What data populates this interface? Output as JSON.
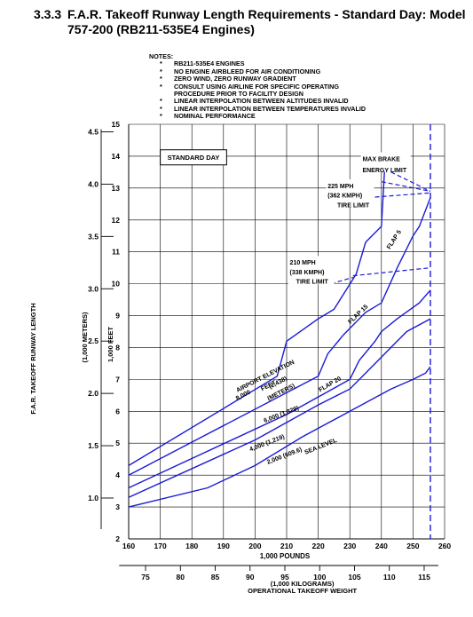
{
  "title": {
    "number": "3.3.3",
    "line1": "F.A.R. Takeoff Runway Length Requirements - Standard Day: Model",
    "line2": "757-200 (RB211-535E4 Engines)"
  },
  "notes": {
    "heading": "NOTES:",
    "items": [
      "RB211-535E4 ENGINES",
      "NO ENGINE AIRBLEED FOR AIR CONDITIONING",
      "ZERO WIND, ZERO RUNWAY GRADIENT",
      "CONSULT USING AIRLINE FOR SPECIFIC OPERATING PROCEDURE PRIOR TO FACILITY DESIGN",
      "LINEAR INTERPOLATION BETWEEN ALTITUDES INVALID",
      "LINEAR INTERPOLATION BETWEEN TEMPERATURES INVALID",
      "NOMINAL PERFORMANCE"
    ]
  },
  "chart_data": {
    "type": "line",
    "box_label": "STANDARD DAY",
    "xlabel": "1,000 POUNDS",
    "xlabel2": "(1,000 KILOGRAMS)",
    "xlabel_bottom": "OPERATIONAL TAKEOFF WEIGHT",
    "ylabel": "1,000 FEET",
    "ylabel_m": "(1,000 METERS)",
    "ylabel_outer": "F.A.R. TAKEOFF RUNWAY LENGTH",
    "xlim": [
      160,
      260
    ],
    "ylim": [
      2,
      15
    ],
    "x_ticks": [
      "160",
      "170",
      "180",
      "190",
      "200",
      "210",
      "220",
      "230",
      "240",
      "250",
      "260"
    ],
    "y_ticks": [
      "2",
      "3",
      "4",
      "5",
      "6",
      "7",
      "8",
      "9",
      "10",
      "11",
      "12",
      "13",
      "14",
      "15"
    ],
    "m_ticks": [
      "1.0",
      "1.5",
      "2.0",
      "2.5",
      "3.0",
      "3.5",
      "4.0",
      "4.5"
    ],
    "kg_ticks": [
      "75",
      "80",
      "85",
      "90",
      "95",
      "100",
      "105",
      "110",
      "115"
    ],
    "max_weight_lb": 255.5,
    "elevation_label_1": "AIRPORT ELEVATION",
    "elevation_label_2": "FEET",
    "elevation_label_3": "(METERS)",
    "series": [
      {
        "name": "8,000",
        "sub": "(2,438)",
        "x": [
          160,
          207,
          210,
          220,
          225,
          232,
          235,
          240,
          241
        ],
        "y": [
          4.3,
          7.1,
          8.2,
          8.9,
          9.2,
          10.3,
          11.3,
          11.8,
          13.6
        ]
      },
      {
        "name": "6,000",
        "sub": "(1,829)",
        "x": [
          160,
          220,
          223,
          228,
          230,
          235,
          240,
          245,
          250,
          252,
          255.5
        ],
        "y": [
          4.0,
          7.1,
          7.8,
          8.4,
          8.6,
          9.1,
          9.4,
          10.5,
          11.5,
          11.8,
          12.7
        ]
      },
      {
        "name": "4,000",
        "sub": "(1,219)",
        "x": [
          160,
          210,
          230,
          233,
          238,
          240,
          245,
          252,
          255.5
        ],
        "y": [
          3.6,
          5.9,
          7.0,
          7.6,
          8.2,
          8.5,
          8.9,
          9.4,
          9.8
        ]
      },
      {
        "name": "2,000",
        "sub": "(609.6)",
        "x": [
          160,
          200,
          220,
          230,
          236,
          240,
          245,
          248,
          255.5
        ],
        "y": [
          3.3,
          5.1,
          6.2,
          6.7,
          7.3,
          7.7,
          8.2,
          8.5,
          8.9
        ]
      },
      {
        "name": "SEA LEVEL",
        "sub": "",
        "x": [
          160,
          185,
          200,
          215,
          230,
          243,
          250,
          254,
          255.5
        ],
        "y": [
          3.0,
          3.6,
          4.3,
          5.2,
          6.0,
          6.7,
          7.0,
          7.2,
          7.4
        ]
      }
    ],
    "flap_labels": [
      "FLAP 5",
      "FLAP 15",
      "FLAP 20"
    ],
    "annotations": {
      "max_brake_1": "MAX BRAKE",
      "max_brake_2": "ENERGY LIMIT",
      "tire225_1": "225 MPH",
      "tire225_2": "(362 KMPH)",
      "tire225_3": "TIRE LIMIT",
      "tire210_1": "210 MPH",
      "tire210_2": "(338 KMPH)",
      "tire210_3": "TIRE LIMIT"
    }
  }
}
